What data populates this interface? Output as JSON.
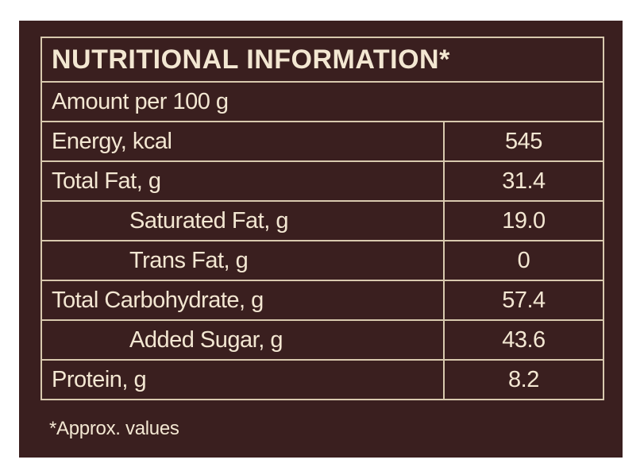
{
  "title": "NUTRITIONAL INFORMATION*",
  "subtitle": "Amount per 100 g",
  "rows": [
    {
      "label": "Energy, kcal",
      "value": "545"
    },
    {
      "label": "Total Fat, g",
      "value": "31.4"
    },
    {
      "label": "Saturated Fat, g",
      "value": "19.0"
    },
    {
      "label": "Trans Fat, g",
      "value": "0"
    },
    {
      "label": "Total Carbohydrate, g",
      "value": "57.4"
    },
    {
      "label": "Added Sugar, g",
      "value": "43.6"
    },
    {
      "label": "Protein, g",
      "value": "8.2"
    }
  ],
  "footnote": "*Approx. values",
  "colors": {
    "background": "#3a1f1f",
    "text": "#f3e7d2",
    "border": "#d8c9ae"
  }
}
